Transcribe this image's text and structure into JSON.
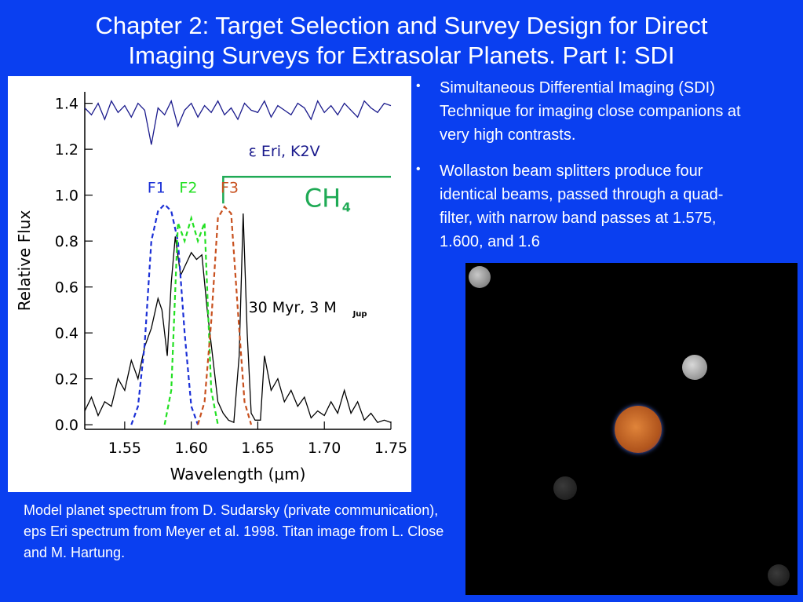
{
  "slide": {
    "title_line1": "Chapter 2: Target Selection and Survey Design for Direct",
    "title_line2": "Imaging Surveys for Extrasolar Planets.  Part I: SDI",
    "bullets": [
      "Simultaneous Differential Imaging (SDI) Technique for imaging close companions at very high contrasts.",
      "Wollaston beam splitters produce four identical beams, passed through a quad-filter, with narrow band passes at 1.575, 1.600, and 1.6"
    ],
    "caption": "Model planet spectrum from D. Sudarsky (private communication), eps Eri spectrum from Meyer et al. 1998.  Titan image from L. Close and M. Hartung.",
    "colors": {
      "background": "#0a3ff0",
      "star_spectrum": "#1a1a8c",
      "F1": "#1a2fd6",
      "F2": "#22e022",
      "F3": "#c8501e",
      "CH4": "#1faa55"
    }
  },
  "chart_data": {
    "type": "line",
    "xlabel": "Wavelength (μm)",
    "ylabel": "Relative Flux",
    "xlim": [
      1.52,
      1.75
    ],
    "ylim": [
      -0.02,
      1.45
    ],
    "xticks": [
      "1.55",
      "1.60",
      "1.65",
      "1.70",
      "1.75"
    ],
    "yticks": [
      "0.0",
      "0.2",
      "0.4",
      "0.6",
      "0.8",
      "1.0",
      "1.2",
      "1.4"
    ],
    "star_label": "ε Eri, K2V",
    "planet_label": "30 Myr, 3 M",
    "planet_label_sub": "Jup",
    "ch4_label": "CH",
    "ch4_sub": "4",
    "ch4_band": {
      "x_start": 1.624,
      "y": 1.08
    },
    "filter_labels": [
      "F1",
      "F2",
      "F3"
    ],
    "series": [
      {
        "name": "ε Eri, K2V",
        "style": "solid",
        "color": "#1a1a8c",
        "x": [
          1.52,
          1.525,
          1.53,
          1.535,
          1.54,
          1.545,
          1.55,
          1.555,
          1.56,
          1.565,
          1.57,
          1.575,
          1.58,
          1.585,
          1.59,
          1.595,
          1.6,
          1.605,
          1.61,
          1.615,
          1.62,
          1.625,
          1.63,
          1.635,
          1.64,
          1.645,
          1.65,
          1.655,
          1.66,
          1.665,
          1.67,
          1.675,
          1.68,
          1.685,
          1.69,
          1.695,
          1.7,
          1.705,
          1.71,
          1.715,
          1.72,
          1.725,
          1.73,
          1.735,
          1.74,
          1.745,
          1.75
        ],
        "y": [
          1.38,
          1.35,
          1.4,
          1.33,
          1.41,
          1.36,
          1.39,
          1.34,
          1.4,
          1.37,
          1.22,
          1.38,
          1.35,
          1.41,
          1.3,
          1.37,
          1.4,
          1.34,
          1.39,
          1.36,
          1.41,
          1.35,
          1.38,
          1.33,
          1.4,
          1.37,
          1.36,
          1.41,
          1.34,
          1.39,
          1.37,
          1.35,
          1.4,
          1.38,
          1.33,
          1.41,
          1.36,
          1.39,
          1.35,
          1.4,
          1.37,
          1.34,
          1.41,
          1.38,
          1.36,
          1.4,
          1.39
        ]
      },
      {
        "name": "30 Myr, 3 MJup",
        "style": "solid",
        "color": "#000000",
        "x": [
          1.52,
          1.525,
          1.53,
          1.535,
          1.54,
          1.545,
          1.55,
          1.555,
          1.56,
          1.565,
          1.57,
          1.575,
          1.578,
          1.582,
          1.585,
          1.588,
          1.592,
          1.596,
          1.6,
          1.604,
          1.608,
          1.612,
          1.616,
          1.62,
          1.624,
          1.628,
          1.632,
          1.636,
          1.639,
          1.642,
          1.645,
          1.648,
          1.652,
          1.655,
          1.66,
          1.665,
          1.67,
          1.675,
          1.68,
          1.685,
          1.69,
          1.695,
          1.7,
          1.705,
          1.71,
          1.715,
          1.72,
          1.725,
          1.73,
          1.735,
          1.74,
          1.745,
          1.75
        ],
        "y": [
          0.06,
          0.12,
          0.04,
          0.1,
          0.08,
          0.2,
          0.15,
          0.28,
          0.2,
          0.34,
          0.42,
          0.55,
          0.5,
          0.3,
          0.62,
          0.82,
          0.65,
          0.7,
          0.75,
          0.72,
          0.74,
          0.5,
          0.3,
          0.1,
          0.05,
          0.02,
          0.01,
          0.3,
          0.92,
          0.4,
          0.05,
          0.02,
          0.02,
          0.3,
          0.15,
          0.2,
          0.1,
          0.15,
          0.08,
          0.12,
          0.03,
          0.06,
          0.04,
          0.1,
          0.05,
          0.15,
          0.05,
          0.1,
          0.02,
          0.05,
          0.01,
          0.02,
          0.01
        ]
      },
      {
        "name": "F1",
        "style": "dashed",
        "color": "#1a2fd6",
        "x": [
          1.555,
          1.56,
          1.565,
          1.57,
          1.575,
          1.58,
          1.585,
          1.59,
          1.595,
          1.6,
          1.605
        ],
        "y": [
          0.0,
          0.08,
          0.35,
          0.8,
          0.93,
          0.96,
          0.93,
          0.8,
          0.4,
          0.08,
          0.0
        ]
      },
      {
        "name": "F2",
        "style": "dashed",
        "color": "#22e022",
        "x": [
          1.58,
          1.585,
          1.59,
          1.595,
          1.6,
          1.605,
          1.61,
          1.615,
          1.62
        ],
        "y": [
          0.0,
          0.15,
          0.88,
          0.8,
          0.9,
          0.8,
          0.88,
          0.15,
          0.0
        ]
      },
      {
        "name": "F3",
        "style": "dashed",
        "color": "#c8501e",
        "x": [
          1.605,
          1.61,
          1.615,
          1.62,
          1.625,
          1.63,
          1.635,
          1.64,
          1.645
        ],
        "y": [
          0.0,
          0.1,
          0.45,
          0.9,
          0.95,
          0.92,
          0.5,
          0.1,
          0.0
        ]
      }
    ]
  },
  "image": {
    "subject": "Titan image"
  }
}
